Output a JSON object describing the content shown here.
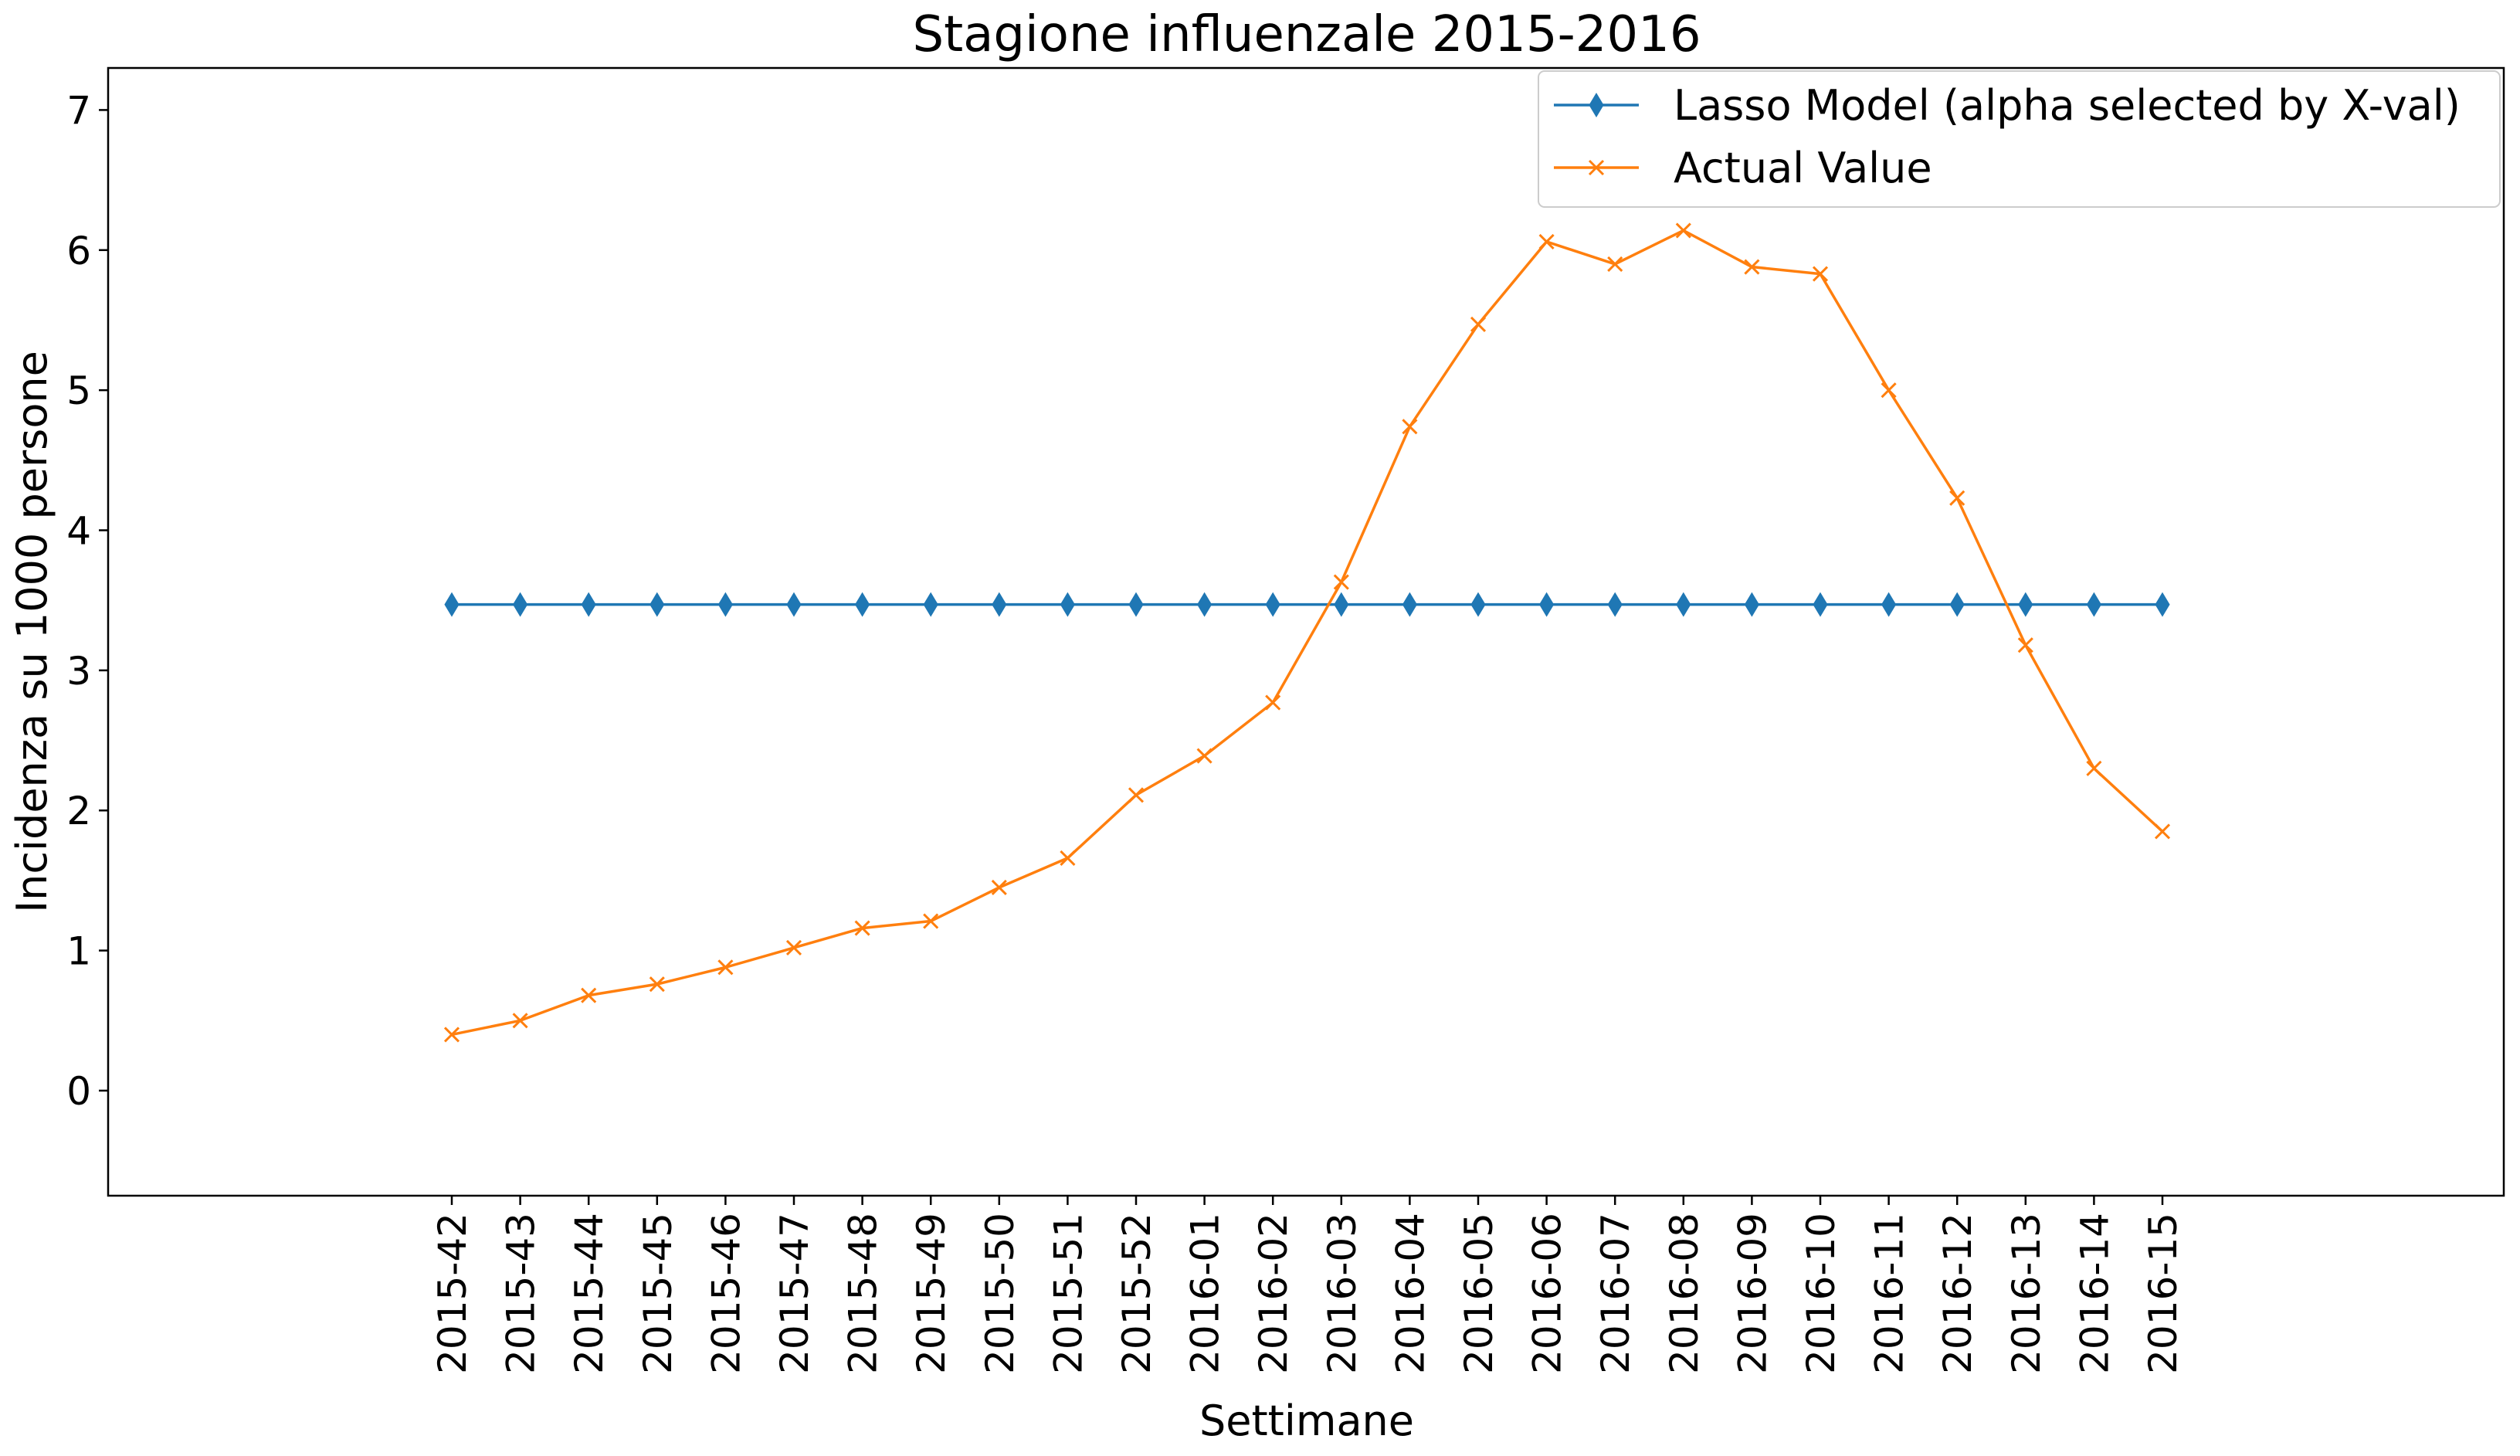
{
  "chart_data": {
    "type": "line",
    "title": "Stagione influenzale 2015-2016",
    "xlabel": "Settimane",
    "ylabel": "Incidenza su 1000 persone",
    "ylim": [
      -0.75,
      7.3
    ],
    "yticks": [
      0,
      1,
      2,
      3,
      4,
      5,
      6,
      7
    ],
    "grid": false,
    "legend_position": "top-right",
    "categories": [
      "2015-42",
      "2015-43",
      "2015-44",
      "2015-45",
      "2015-46",
      "2015-47",
      "2015-48",
      "2015-49",
      "2015-50",
      "2015-51",
      "2015-52",
      "2016-01",
      "2016-02",
      "2016-03",
      "2016-04",
      "2016-05",
      "2016-06",
      "2016-07",
      "2016-08",
      "2016-09",
      "2016-10",
      "2016-11",
      "2016-12",
      "2016-13",
      "2016-14",
      "2016-15"
    ],
    "series": [
      {
        "name": "Lasso Model (alpha selected by X-val)",
        "color": "#1f77b4",
        "marker": "thin_diamond",
        "values": [
          3.47,
          3.47,
          3.47,
          3.47,
          3.47,
          3.47,
          3.47,
          3.47,
          3.47,
          3.47,
          3.47,
          3.47,
          3.47,
          3.47,
          3.47,
          3.47,
          3.47,
          3.47,
          3.47,
          3.47,
          3.47,
          3.47,
          3.47,
          3.47,
          3.47,
          3.47
        ]
      },
      {
        "name": "Actual Value",
        "color": "#ff7f0e",
        "marker": "x",
        "values": [
          0.4,
          0.5,
          0.68,
          0.76,
          0.88,
          1.02,
          1.16,
          1.21,
          1.45,
          1.66,
          2.11,
          2.39,
          2.77,
          3.63,
          4.74,
          5.47,
          6.06,
          5.9,
          6.14,
          5.88,
          5.83,
          5.0,
          4.23,
          3.18,
          2.3,
          1.85
        ]
      }
    ]
  }
}
